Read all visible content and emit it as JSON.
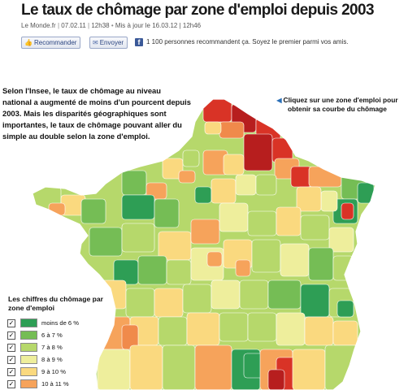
{
  "header": {
    "title": "Le taux de chômage par zone d'emploi depuis 2003",
    "source": "Le Monde.fr",
    "date": "07.02.11",
    "time": "12h38",
    "updated": "Mis à jour le 16.03.12 | 12h46"
  },
  "social": {
    "recommend_label": "Recommander",
    "send_label": "Envoyer",
    "facebook_text": "1 100 personnes recommandent ça. Soyez le premier parmi vos amis."
  },
  "intro_text": "Selon l'Insee, le taux de chômage au niveau national a augmenté de moins d'un pourcent depuis 2003. Mais les disparités géographiques sont importantes, le taux de chômage pouvant aller du simple au double selon la zone d'emploi.",
  "hint_text": "Cliquez sur une zone d'emploi pour obtenir sa courbe du chômage",
  "legend": {
    "title": "Les chiffres du chômage par zone d'emploi",
    "items": [
      {
        "label": "moins de 6 %",
        "color": "#2e9e55"
      },
      {
        "label": "6 à 7 %",
        "color": "#75bd55"
      },
      {
        "label": "7 à 8 %",
        "color": "#b6d86b"
      },
      {
        "label": "8 à 9 %",
        "color": "#eeee9c"
      },
      {
        "label": "9 à 10 %",
        "color": "#fad97f"
      },
      {
        "label": "10 à 11 %",
        "color": "#f6a35b"
      }
    ]
  },
  "map_colors": {
    "red": "#d93326",
    "dark_red": "#b71e1e",
    "orange": "#f08a4b",
    "light_orange": "#f6a35b",
    "yellow": "#fad97f",
    "pale_yellow": "#eeee9c",
    "light_green": "#b6d86b",
    "mid_green": "#75bd55",
    "dark_green": "#2e9e55"
  }
}
